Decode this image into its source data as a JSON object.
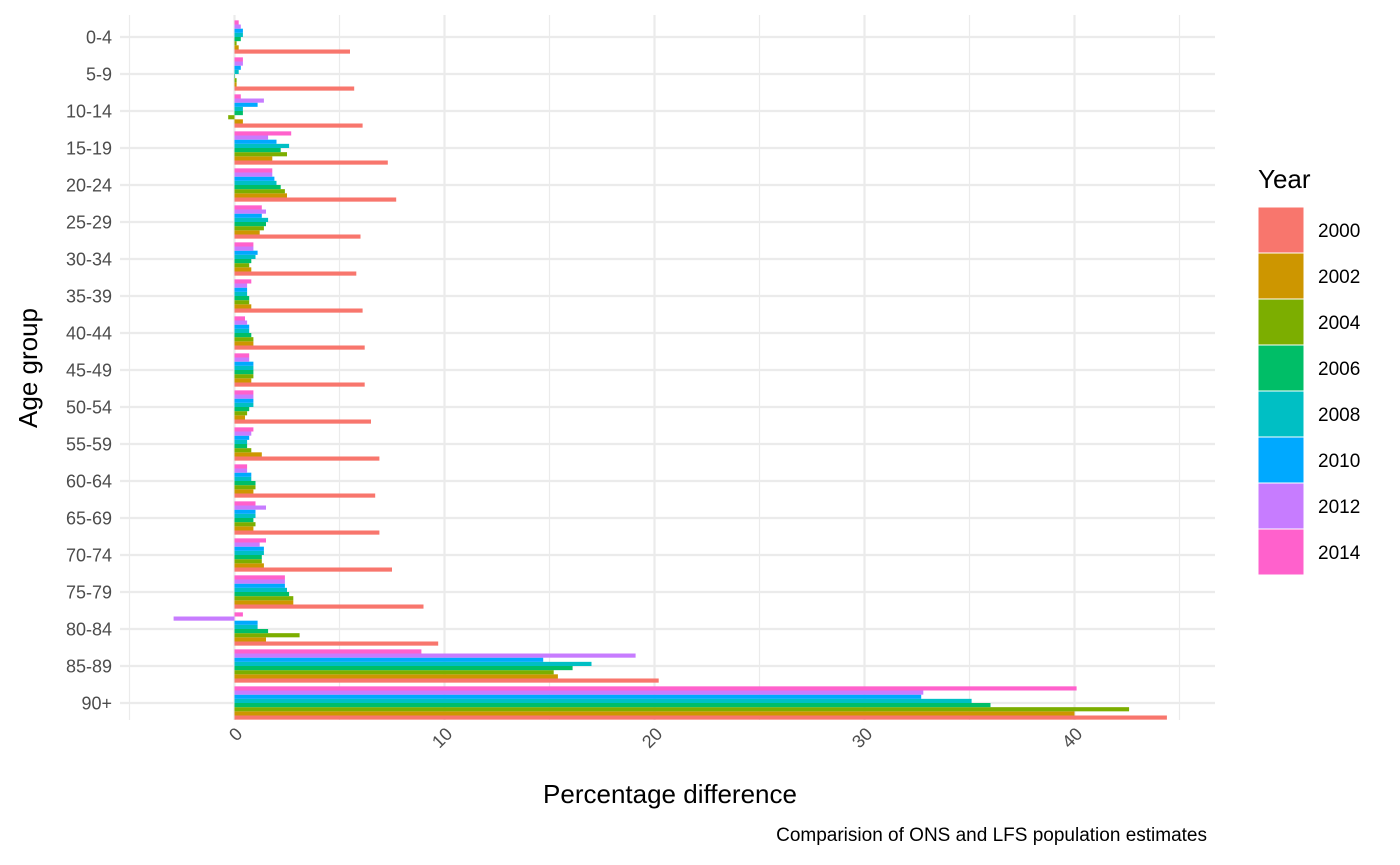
{
  "chart_data": {
    "type": "bar",
    "orientation": "horizontal",
    "xlabel": "Percentage difference",
    "ylabel": "Age group",
    "caption": "Comparision of ONS and LFS population estimates",
    "legend_title": "Year",
    "legend_position": "right",
    "grid": true,
    "xlim": [
      -5,
      46
    ],
    "x_ticks": [
      0,
      10,
      20,
      30,
      40
    ],
    "categories": [
      "0-4",
      "5-9",
      "10-14",
      "15-19",
      "20-24",
      "25-29",
      "30-34",
      "35-39",
      "40-44",
      "45-49",
      "50-54",
      "55-59",
      "60-64",
      "65-69",
      "70-74",
      "75-79",
      "80-84",
      "85-89",
      "90+"
    ],
    "series": [
      {
        "name": "2000",
        "color": "#F8766D",
        "values": [
          5.5,
          5.7,
          6.1,
          7.3,
          7.7,
          6.0,
          5.8,
          6.1,
          6.2,
          6.2,
          6.5,
          6.9,
          6.7,
          6.9,
          7.5,
          9.0,
          9.7,
          20.2,
          44.4
        ]
      },
      {
        "name": "2002",
        "color": "#CD9600",
        "values": [
          0.2,
          0.1,
          0.4,
          1.8,
          2.5,
          1.2,
          0.8,
          0.8,
          0.9,
          0.8,
          0.5,
          1.3,
          0.9,
          0.9,
          1.4,
          2.8,
          1.5,
          15.4,
          40.0
        ]
      },
      {
        "name": "2004",
        "color": "#7CAE00",
        "values": [
          0.1,
          0.1,
          -0.3,
          2.5,
          2.4,
          1.4,
          0.7,
          0.7,
          0.9,
          0.9,
          0.6,
          0.8,
          1.0,
          1.0,
          1.3,
          2.8,
          3.1,
          15.2,
          42.6
        ]
      },
      {
        "name": "2006",
        "color": "#00BE67",
        "values": [
          0.3,
          0.0,
          0.4,
          2.2,
          2.2,
          1.5,
          0.8,
          0.7,
          0.8,
          0.9,
          0.7,
          0.6,
          1.0,
          0.9,
          1.3,
          2.6,
          1.6,
          16.1,
          36.0
        ]
      },
      {
        "name": "2008",
        "color": "#00BFC4",
        "values": [
          0.4,
          0.2,
          0.4,
          2.6,
          2.0,
          1.6,
          1.0,
          0.6,
          0.7,
          0.9,
          0.9,
          0.6,
          0.8,
          1.0,
          1.4,
          2.5,
          1.1,
          17.0,
          35.1
        ]
      },
      {
        "name": "2010",
        "color": "#00A9FF",
        "values": [
          0.4,
          0.3,
          1.1,
          2.0,
          1.9,
          1.3,
          1.1,
          0.6,
          0.7,
          0.9,
          0.9,
          0.7,
          0.8,
          1.0,
          1.4,
          2.4,
          1.1,
          14.7,
          32.7
        ]
      },
      {
        "name": "2012",
        "color": "#C77CFF",
        "values": [
          0.3,
          0.4,
          1.4,
          1.6,
          1.8,
          1.5,
          0.9,
          0.6,
          0.6,
          0.7,
          0.9,
          0.8,
          0.6,
          1.5,
          1.2,
          2.4,
          -2.9,
          19.1,
          32.8
        ]
      },
      {
        "name": "2014",
        "color": "#FF61CC",
        "values": [
          0.2,
          0.4,
          0.3,
          2.7,
          1.8,
          1.3,
          0.9,
          0.8,
          0.5,
          0.7,
          0.9,
          0.9,
          0.6,
          1.0,
          1.5,
          2.4,
          0.4,
          8.9,
          40.1
        ]
      }
    ]
  }
}
